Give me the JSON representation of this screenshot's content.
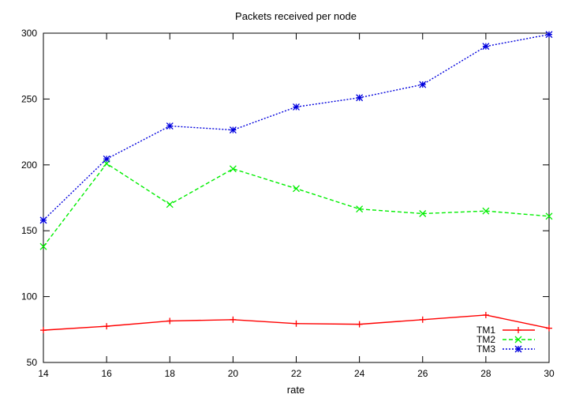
{
  "chart_data": {
    "type": "line",
    "title": "Packets received per node",
    "xlabel": "rate",
    "ylabel": "",
    "xlim": [
      14,
      30
    ],
    "ylim": [
      50,
      300
    ],
    "xticks": [
      14,
      16,
      18,
      20,
      22,
      24,
      26,
      28,
      30
    ],
    "yticks": [
      50,
      100,
      150,
      200,
      250,
      300
    ],
    "grid": false,
    "legend_position": "bottom-right",
    "x": [
      14,
      16,
      18,
      20,
      22,
      24,
      26,
      28,
      30
    ],
    "series": [
      {
        "name": "TM1",
        "color": "#ff0000",
        "marker": "plus",
        "line_style": "solid",
        "values": [
          74.5,
          77.5,
          81.5,
          82.5,
          79.5,
          79,
          82.5,
          86,
          76
        ]
      },
      {
        "name": "TM2",
        "color": "#00ee00",
        "marker": "x",
        "line_style": "dashed",
        "values": [
          138,
          201,
          170,
          197,
          182,
          166.5,
          163,
          165,
          161
        ]
      },
      {
        "name": "TM3",
        "color": "#0000dd",
        "marker": "star",
        "line_style": "dotted",
        "values": [
          158,
          204.5,
          229.5,
          226.5,
          244,
          251,
          261,
          290,
          299
        ]
      }
    ]
  }
}
